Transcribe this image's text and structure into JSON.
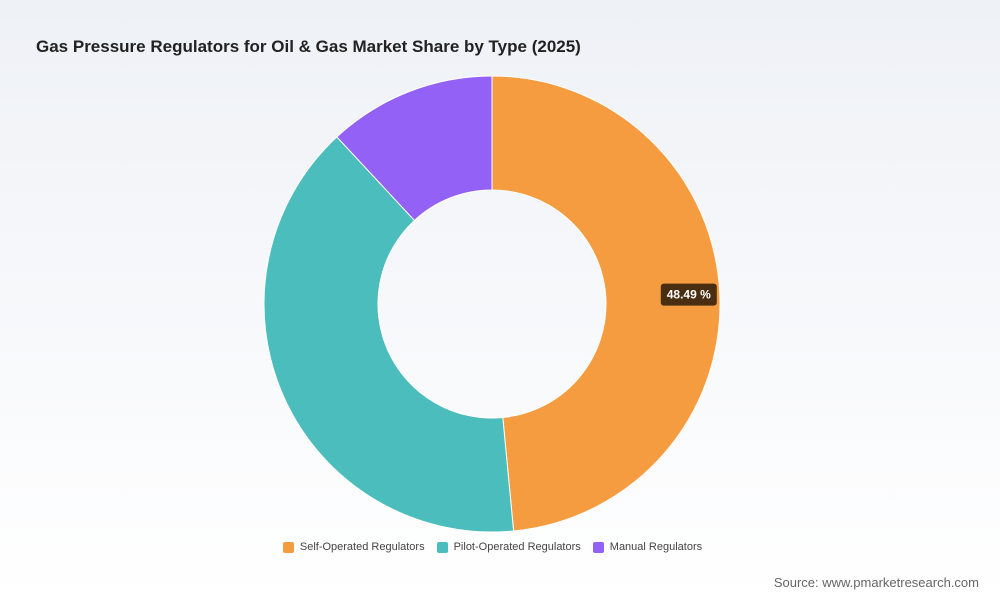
{
  "title": "Gas Pressure Regulators for Oil & Gas Market Share by Type (2025)",
  "source": "Source: www.pmarketresearch.com",
  "chart_data": {
    "type": "pie",
    "donut": true,
    "series": [
      {
        "name": "Self-Operated Regulators",
        "value": 48.49,
        "color": "#f59c40",
        "label": "48.49 %"
      },
      {
        "name": "Pilot-Operated Regulators",
        "value": 39.6,
        "color": "#4bbdbd",
        "label": ""
      },
      {
        "name": "Manual Regulators",
        "value": 11.91,
        "color": "#9461f7",
        "label": ""
      }
    ],
    "legend_position": "bottom"
  }
}
